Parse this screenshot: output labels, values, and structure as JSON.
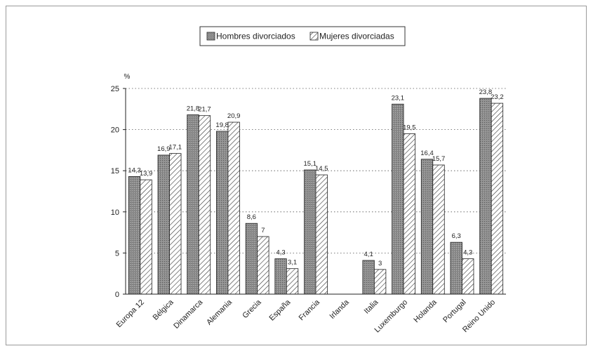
{
  "chart_data": {
    "type": "bar",
    "ylabel": "%",
    "ylim": [
      0,
      25
    ],
    "yticks": [
      0,
      5,
      10,
      15,
      20,
      25
    ],
    "grid": true,
    "legend_position": "top",
    "categories": [
      "Europa 12",
      "Bélgica",
      "Dinamarca",
      "Alemania",
      "Grecia",
      "España",
      "Francia",
      "Irlanda",
      "Italia",
      "Luxemburgo",
      "Holanda",
      "Portugal",
      "Reino Unido"
    ],
    "series": [
      {
        "name": "Hombres divorciados",
        "values": [
          14.3,
          16.9,
          21.8,
          19.8,
          8.6,
          4.3,
          15.1,
          null,
          4.1,
          23.1,
          16.4,
          6.3,
          23.8
        ],
        "labels": [
          "14,3",
          "16,9",
          "21,8",
          "19,8",
          "8,6",
          "4,3",
          "15,1",
          "",
          "4,1",
          "23,1",
          "16,4",
          "6,3",
          "23,8"
        ],
        "color": "#8c8c8c",
        "pattern": "dense-shade"
      },
      {
        "name": "Mujeres divorciadas",
        "values": [
          13.9,
          17.1,
          21.7,
          20.9,
          7,
          3.1,
          14.5,
          null,
          3,
          19.5,
          15.7,
          4.3,
          23.2
        ],
        "labels": [
          "13,9",
          "17,1",
          "21,7",
          "20,9",
          "7",
          "3,1",
          "14,5",
          "",
          "3",
          "19,5",
          "15,7",
          "4,3",
          "23,2"
        ],
        "color": "#ffffff",
        "pattern": "diagonal-hatch"
      }
    ]
  }
}
